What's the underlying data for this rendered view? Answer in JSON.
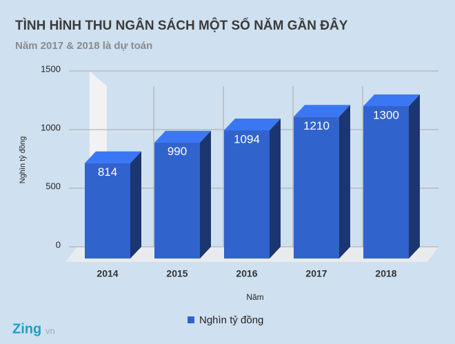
{
  "chart_data": {
    "type": "bar3d",
    "title": "TÌNH HÌNH THU NGÂN SÁCH MỘT SỐ NĂM GẦN ĐÂY",
    "subtitle": "Năm 2017 & 2018 là dự toán",
    "x_label": "Năm",
    "y_label": "Nghìn tỷ đồng",
    "categories": [
      "2014",
      "2015",
      "2016",
      "2017",
      "2018"
    ],
    "series": [
      {
        "name": "Nghìn tỷ đồng",
        "color": "#3163cc",
        "values": [
          814,
          990,
          1094,
          1210,
          1300
        ]
      }
    ],
    "ylim": [
      0,
      1500
    ],
    "yticks": [
      0,
      500,
      1000,
      1500
    ],
    "grid": true,
    "legend": "bottom"
  },
  "brand": {
    "name": "Zing",
    "suffix": "vn"
  }
}
